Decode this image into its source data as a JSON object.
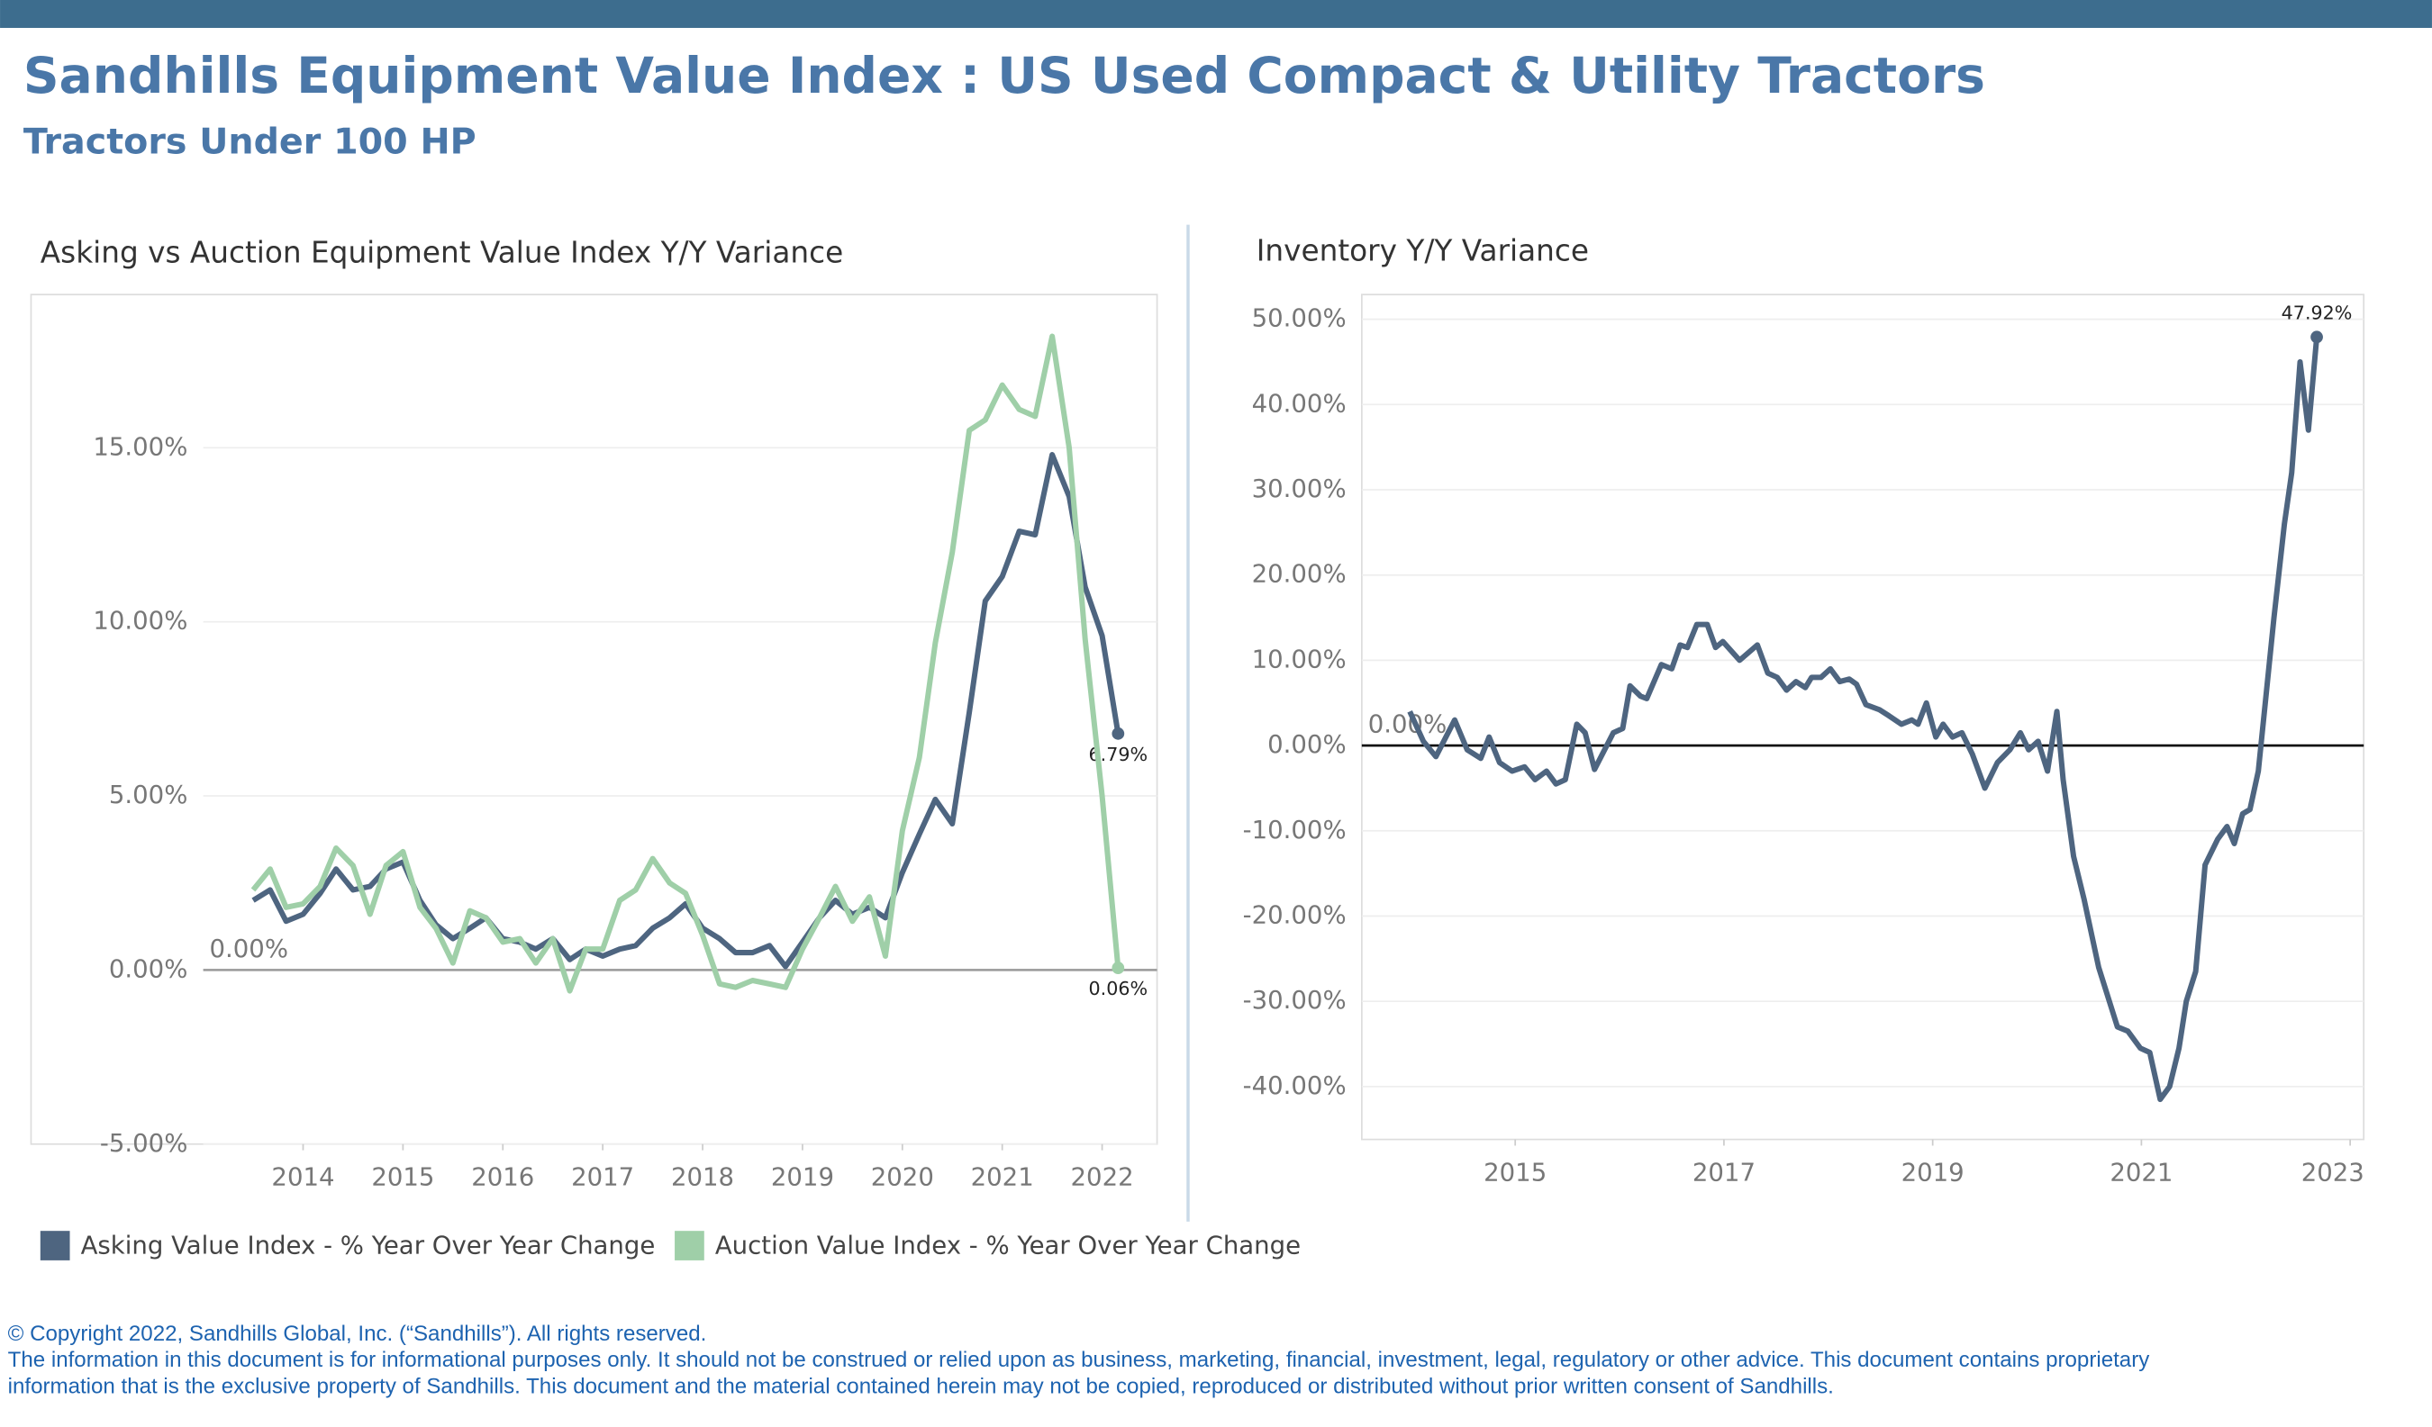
{
  "header": {
    "title": "Sandhills Equipment Value Index : US Used Compact & Utility Tractors",
    "subtitle": "Tractors Under 100 HP"
  },
  "footer": {
    "copyright": "© Copyright 2022, Sandhills Global, Inc. (“Sandhills”). All rights reserved.",
    "line_1": "The information in this document is for informational purposes only.  It should not be construed or relied upon as business, marketing, financial, investment, legal, regulatory or other advice. This document contains proprietary",
    "line_2": "information that is the exclusive property of Sandhills. This document and the material contained herein may not be copied, reproduced or distributed without prior written consent of Sandhills."
  },
  "chart_data": [
    {
      "type": "line",
      "title": "Asking vs Auction Equipment Value Index Y/Y Variance",
      "x": [
        2013.5,
        2013.67,
        2013.83,
        2014,
        2014.17,
        2014.33,
        2014.5,
        2014.67,
        2014.83,
        2015,
        2015.17,
        2015.33,
        2015.5,
        2015.67,
        2015.83,
        2016,
        2016.17,
        2016.33,
        2016.5,
        2016.67,
        2016.83,
        2017,
        2017.17,
        2017.33,
        2017.5,
        2017.67,
        2017.83,
        2018,
        2018.17,
        2018.33,
        2018.5,
        2018.67,
        2018.83,
        2019,
        2019.17,
        2019.33,
        2019.5,
        2019.67,
        2019.83,
        2020,
        2020.17,
        2020.33,
        2020.5,
        2020.67,
        2020.83,
        2021,
        2021.17,
        2021.33,
        2021.5,
        2021.67,
        2021.83,
        2022,
        2022.16
      ],
      "series": [
        {
          "name": "Asking Value Index - % Year Over Year Change",
          "color": "#4e6580",
          "values": [
            2.0,
            2.3,
            1.4,
            1.6,
            2.2,
            2.9,
            2.3,
            2.4,
            2.9,
            3.1,
            2.0,
            1.3,
            0.9,
            1.2,
            1.5,
            0.9,
            0.8,
            0.6,
            0.9,
            0.3,
            0.6,
            0.4,
            0.6,
            0.7,
            1.2,
            1.5,
            1.9,
            1.2,
            0.9,
            0.5,
            0.5,
            0.7,
            0.1,
            0.8,
            1.5,
            2.0,
            1.6,
            1.8,
            1.5,
            2.8,
            3.9,
            4.9,
            4.2,
            7.4,
            10.6,
            11.3,
            12.6,
            12.5,
            14.8,
            13.6,
            11.0,
            9.6,
            6.79
          ],
          "value_labels": [
            null,
            null,
            null,
            null,
            null,
            null,
            null,
            null,
            null,
            null,
            null,
            null,
            null,
            null,
            null,
            null,
            null,
            null,
            null,
            null,
            null,
            null,
            null,
            null,
            null,
            null,
            null,
            null,
            null,
            null,
            null,
            null,
            null,
            null,
            null,
            null,
            null,
            null,
            null,
            null,
            null,
            null,
            null,
            null,
            null,
            null,
            null,
            null,
            null,
            null,
            null,
            null,
            "6.79%"
          ]
        },
        {
          "name": "Auction Value Index - % Year Over Year Change",
          "color": "#9fcfa8",
          "values": [
            2.3,
            2.9,
            1.8,
            1.9,
            2.4,
            3.5,
            3.0,
            1.6,
            3.0,
            3.4,
            1.8,
            1.2,
            0.2,
            1.7,
            1.5,
            0.8,
            0.9,
            0.2,
            0.9,
            -0.6,
            0.6,
            0.6,
            2.0,
            2.3,
            3.2,
            2.5,
            2.2,
            1.0,
            -0.4,
            -0.5,
            -0.3,
            -0.4,
            -0.5,
            0.6,
            1.5,
            2.4,
            1.4,
            2.1,
            0.4,
            4.0,
            6.1,
            9.4,
            12.0,
            15.5,
            15.8,
            16.8,
            16.1,
            15.9,
            18.2,
            15.0,
            9.5,
            5.0,
            0.06
          ],
          "value_labels": [
            null,
            null,
            null,
            null,
            null,
            null,
            null,
            null,
            null,
            null,
            null,
            null,
            null,
            null,
            null,
            null,
            null,
            null,
            null,
            null,
            null,
            null,
            null,
            null,
            null,
            null,
            null,
            null,
            null,
            null,
            null,
            null,
            null,
            null,
            null,
            null,
            null,
            null,
            null,
            null,
            null,
            null,
            null,
            null,
            null,
            null,
            null,
            null,
            null,
            null,
            null,
            null,
            "0.06%"
          ]
        }
      ],
      "xlim": [
        2013,
        2022.55
      ],
      "xticks": [
        2014,
        2015,
        2016,
        2017,
        2018,
        2019,
        2020,
        2021,
        2022
      ],
      "ylim": [
        -5,
        19.4
      ],
      "yticks": [
        {
          "value": -5,
          "label": "-5.00%"
        },
        {
          "value": 0,
          "label": "0.00%"
        },
        {
          "value": 5,
          "label": "5.00%"
        },
        {
          "value": 10,
          "label": "10.00%"
        },
        {
          "value": 15,
          "label": "15.00%"
        }
      ],
      "reference_line": {
        "value": 0,
        "label": "0.00%",
        "color": "#999999"
      },
      "value_label_position": "below",
      "grid": true,
      "legend": "bottom"
    },
    {
      "type": "line",
      "title": "Inventory Y/Y Variance",
      "x": [
        2013.99,
        2014.12,
        2014.24,
        2014.42,
        2014.54,
        2014.67,
        2014.75,
        2014.85,
        2014.97,
        2015.09,
        2015.19,
        2015.3,
        2015.39,
        2015.48,
        2015.59,
        2015.67,
        2015.76,
        2015.94,
        2016.03,
        2016.1,
        2016.2,
        2016.26,
        2016.4,
        2016.5,
        2016.58,
        2016.65,
        2016.74,
        2016.84,
        2016.92,
        2016.99,
        2017.15,
        2017.32,
        2017.42,
        2017.51,
        2017.6,
        2017.69,
        2017.78,
        2017.84,
        2017.93,
        2018.02,
        2018.11,
        2018.2,
        2018.27,
        2018.36,
        2018.49,
        2018.58,
        2018.7,
        2018.8,
        2018.86,
        2018.94,
        2019.03,
        2019.1,
        2019.19,
        2019.28,
        2019.38,
        2019.5,
        2019.62,
        2019.74,
        2019.84,
        2019.92,
        2020.01,
        2020.1,
        2020.19,
        2020.25,
        2020.35,
        2020.45,
        2020.59,
        2020.77,
        2020.87,
        2020.99,
        2021.08,
        2021.18,
        2021.27,
        2021.36,
        2021.43,
        2021.52,
        2021.61,
        2021.73,
        2021.82,
        2021.89,
        2021.97,
        2022.04,
        2022.12,
        2022.27,
        2022.37,
        2022.44,
        2022.52,
        2022.6,
        2022.68
      ],
      "series": [
        {
          "color": "#4e6580",
          "values": [
            4.0,
            0.5,
            -1.3,
            3.0,
            -0.5,
            -1.5,
            1.0,
            -2.0,
            -3.0,
            -2.5,
            -4.0,
            -3.0,
            -4.5,
            -4.0,
            2.5,
            1.5,
            -2.8,
            1.5,
            2.0,
            7.0,
            5.8,
            5.5,
            9.5,
            9.0,
            11.8,
            11.5,
            14.2,
            14.2,
            11.5,
            12.2,
            10.0,
            11.8,
            8.5,
            8.0,
            6.5,
            7.5,
            6.8,
            8.0,
            8.0,
            9.0,
            7.5,
            7.8,
            7.2,
            4.8,
            4.2,
            3.5,
            2.5,
            3.0,
            2.5,
            5.0,
            1.0,
            2.5,
            1.0,
            1.5,
            -1.0,
            -5.0,
            -2.0,
            -0.5,
            1.5,
            -0.5,
            0.5,
            -3.0,
            4.0,
            -4.0,
            -13.0,
            -18.0,
            -26.0,
            -33.0,
            -33.5,
            -35.5,
            -36.0,
            -41.5,
            -40.0,
            -35.5,
            -30.0,
            -26.5,
            -14.0,
            -11.0,
            -9.5,
            -11.5,
            -8.0,
            -7.5,
            -3.0,
            15.0,
            26.0,
            32.0,
            45.0,
            37.0,
            47.92
          ],
          "value_labels": [
            null,
            null,
            null,
            null,
            null,
            null,
            null,
            null,
            null,
            null,
            null,
            null,
            null,
            null,
            null,
            null,
            null,
            null,
            null,
            null,
            null,
            null,
            null,
            null,
            null,
            null,
            null,
            null,
            null,
            null,
            null,
            null,
            null,
            null,
            null,
            null,
            null,
            null,
            null,
            null,
            null,
            null,
            null,
            null,
            null,
            null,
            null,
            null,
            null,
            null,
            null,
            null,
            null,
            null,
            null,
            null,
            null,
            null,
            null,
            null,
            null,
            null,
            null,
            null,
            null,
            null,
            null,
            null,
            null,
            null,
            null,
            null,
            null,
            null,
            null,
            null,
            null,
            null,
            null,
            null,
            null,
            null,
            null,
            null,
            null,
            null,
            null,
            null,
            "47.92%"
          ]
        }
      ],
      "xlim": [
        2013.53,
        2023.13
      ],
      "xticks": [
        2015,
        2017,
        2019,
        2021,
        2023
      ],
      "ylim": [
        -46.2,
        52.9
      ],
      "yticks": [
        {
          "value": -40,
          "label": "-40.00%"
        },
        {
          "value": -30,
          "label": "-30.00%"
        },
        {
          "value": -20,
          "label": "-20.00%"
        },
        {
          "value": -10,
          "label": "-10.00%"
        },
        {
          "value": 0,
          "label": "0.00%"
        },
        {
          "value": 10,
          "label": "10.00%"
        },
        {
          "value": 20,
          "label": "20.00%"
        },
        {
          "value": 30,
          "label": "30.00%"
        },
        {
          "value": 40,
          "label": "40.00%"
        },
        {
          "value": 50,
          "label": "50.00%"
        }
      ],
      "reference_line": {
        "value": 0,
        "label": "0.00%",
        "color": "#000000"
      },
      "value_label_position": "above",
      "grid": true
    }
  ]
}
